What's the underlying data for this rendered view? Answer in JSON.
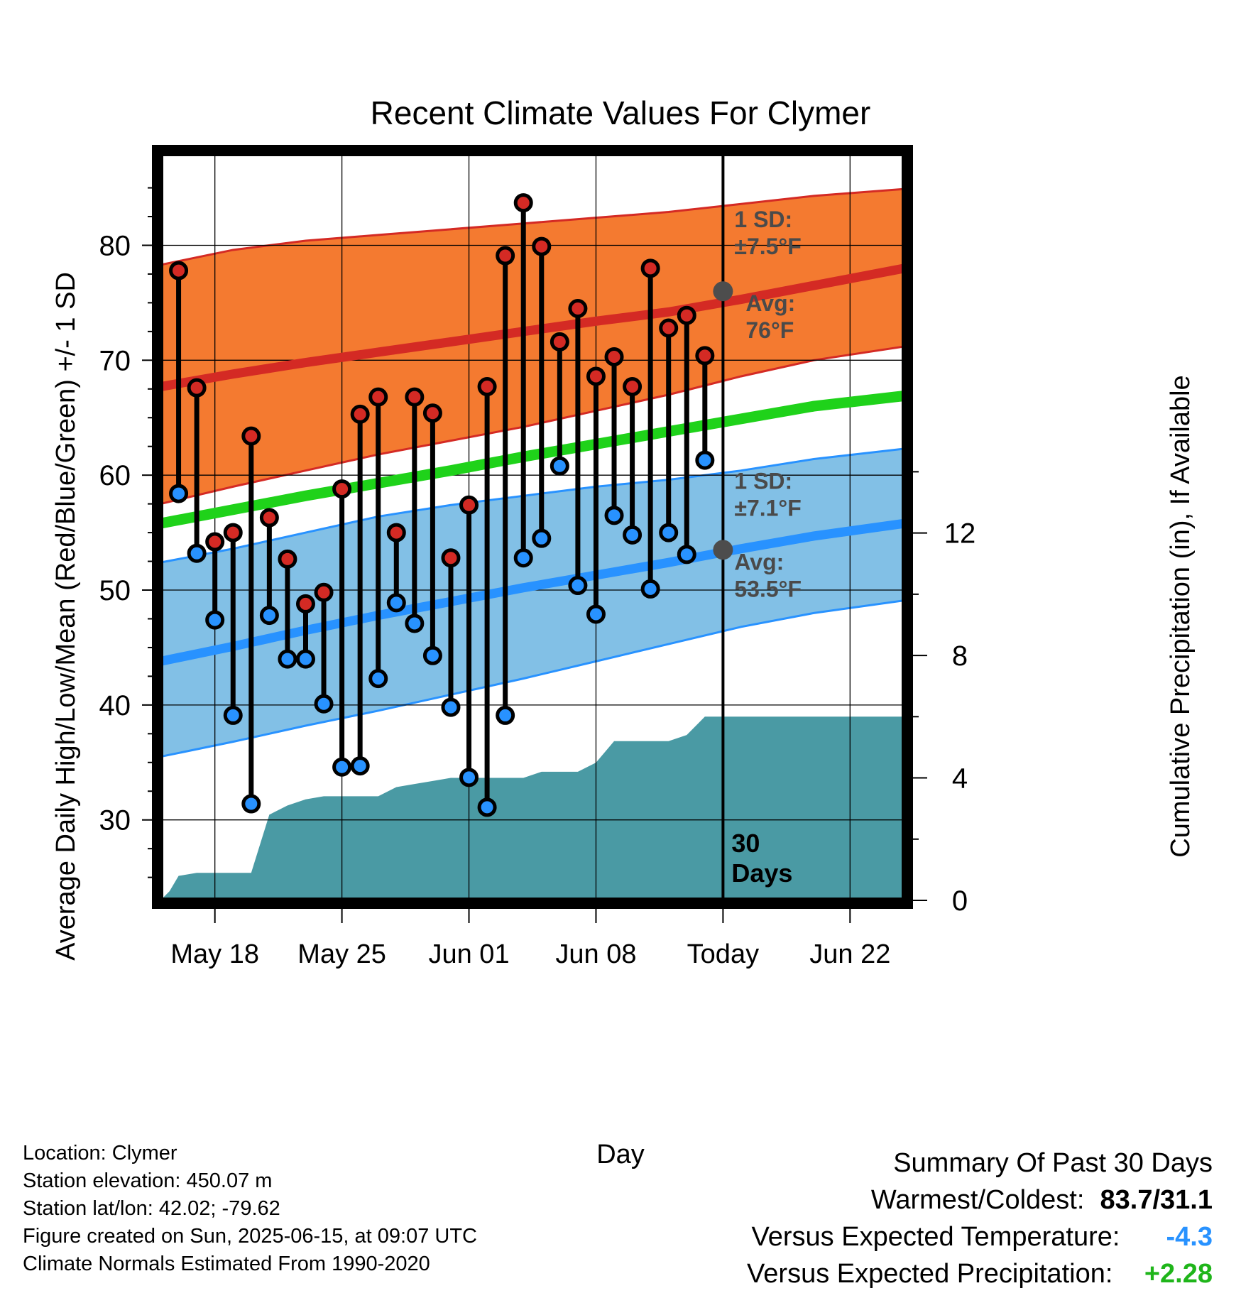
{
  "chart_data": {
    "type": "line",
    "title": "Recent Climate Values For Clymer",
    "xlabel": "Day",
    "ylabel": "Average Daily High/Low/Mean (Red/Blue/Green) +/- 1 SD",
    "y2label": "Cumulative Precipitation (in), If Available",
    "x_range": [
      "2025-05-15",
      "2025-06-25"
    ],
    "ylim": [
      23,
      88
    ],
    "y2lim": [
      0,
      24.4
    ],
    "y_ticks": [
      30,
      40,
      50,
      60,
      70,
      80
    ],
    "y2_ticks": [
      0,
      4,
      8,
      12
    ],
    "x_ticks": [
      {
        "date": "2025-05-18",
        "label": "May 18"
      },
      {
        "date": "2025-05-25",
        "label": "May 25"
      },
      {
        "date": "2025-06-01",
        "label": "Jun 01"
      },
      {
        "date": "2025-06-08",
        "label": "Jun 08"
      },
      {
        "date": "2025-06-15",
        "label": "Today"
      },
      {
        "date": "2025-06-22",
        "label": "Jun 22"
      }
    ],
    "grid": true,
    "today_date": "2025-06-15",
    "today_label": [
      "30",
      "Days"
    ],
    "normals": {
      "x": [
        "2025-05-15",
        "2025-05-19",
        "2025-05-23",
        "2025-05-27",
        "2025-05-31",
        "2025-06-04",
        "2025-06-08",
        "2025-06-12",
        "2025-06-16",
        "2025-06-20",
        "2025-06-25"
      ],
      "high_mean": [
        67.7,
        68.8,
        69.8,
        70.7,
        71.6,
        72.5,
        73.4,
        74.2,
        75.3,
        76.5,
        78.0
      ],
      "high_upper": [
        78.3,
        79.6,
        80.4,
        80.9,
        81.4,
        81.9,
        82.4,
        82.9,
        83.6,
        84.3,
        84.9
      ],
      "high_lower": [
        57.5,
        59.0,
        60.4,
        61.8,
        63.0,
        64.2,
        65.6,
        67.0,
        68.6,
        70.0,
        71.2
      ],
      "low_mean": [
        43.8,
        45.1,
        46.5,
        47.8,
        49.0,
        50.2,
        51.3,
        52.4,
        53.6,
        54.7,
        55.8
      ],
      "low_upper": [
        52.4,
        53.6,
        55.0,
        56.4,
        57.4,
        58.2,
        59.0,
        59.6,
        60.4,
        61.4,
        62.3
      ],
      "low_lower": [
        35.5,
        36.8,
        38.2,
        39.5,
        40.9,
        42.3,
        43.8,
        45.3,
        46.8,
        48.0,
        49.1
      ],
      "mean": [
        55.8,
        57.0,
        58.2,
        59.3,
        60.4,
        61.6,
        62.7,
        63.8,
        64.9,
        66.0,
        66.9
      ]
    },
    "daily": {
      "x": [
        "2025-05-16",
        "2025-05-17",
        "2025-05-18",
        "2025-05-19",
        "2025-05-20",
        "2025-05-21",
        "2025-05-22",
        "2025-05-23",
        "2025-05-24",
        "2025-05-25",
        "2025-05-26",
        "2025-05-27",
        "2025-05-28",
        "2025-05-29",
        "2025-05-30",
        "2025-05-31",
        "2025-06-01",
        "2025-06-02",
        "2025-06-03",
        "2025-06-04",
        "2025-06-05",
        "2025-06-06",
        "2025-06-07",
        "2025-06-08",
        "2025-06-09",
        "2025-06-10",
        "2025-06-11",
        "2025-06-12",
        "2025-06-13",
        "2025-06-14"
      ],
      "high": [
        77.8,
        67.6,
        54.2,
        55.0,
        63.4,
        56.3,
        52.7,
        48.8,
        49.8,
        58.8,
        65.3,
        66.8,
        55.0,
        66.8,
        65.4,
        52.8,
        57.4,
        67.7,
        79.1,
        83.7,
        79.9,
        71.6,
        74.5,
        68.6,
        70.3,
        67.7,
        78.0,
        72.8,
        73.9,
        70.4
      ],
      "low": [
        58.4,
        53.2,
        47.4,
        39.1,
        31.4,
        47.8,
        44.0,
        44.0,
        40.1,
        34.6,
        34.7,
        42.3,
        48.9,
        47.1,
        44.3,
        39.8,
        33.7,
        31.1,
        39.1,
        52.8,
        54.5,
        60.8,
        50.4,
        47.9,
        56.5,
        54.8,
        50.1,
        55.0,
        53.1,
        61.3
      ]
    },
    "precip": {
      "x": [
        "2025-05-15",
        "2025-05-15.5",
        "2025-05-16",
        "2025-05-17",
        "2025-05-18",
        "2025-05-19",
        "2025-05-20",
        "2025-05-21",
        "2025-05-22",
        "2025-05-23",
        "2025-05-24",
        "2025-05-25",
        "2025-05-26",
        "2025-05-27",
        "2025-05-28",
        "2025-05-29",
        "2025-05-30",
        "2025-05-31",
        "2025-06-01",
        "2025-06-02",
        "2025-06-03",
        "2025-06-04",
        "2025-06-05",
        "2025-06-06",
        "2025-06-07",
        "2025-06-08",
        "2025-06-09",
        "2025-06-10",
        "2025-06-11",
        "2025-06-12",
        "2025-06-13",
        "2025-06-14",
        "2025-06-25"
      ],
      "values": [
        0.0,
        0.3,
        0.8,
        0.9,
        0.9,
        0.9,
        0.9,
        2.8,
        3.1,
        3.3,
        3.4,
        3.4,
        3.4,
        3.4,
        3.7,
        3.8,
        3.9,
        4.0,
        4.0,
        4.0,
        4.0,
        4.0,
        4.2,
        4.2,
        4.2,
        4.5,
        5.2,
        5.2,
        5.2,
        5.2,
        5.4,
        6.0,
        6.0
      ]
    },
    "annotations": {
      "high_sd": [
        "1 SD:",
        "±7.5°F"
      ],
      "high_avg": [
        "Avg:",
        "76°F"
      ],
      "high_avg_value": 76.0,
      "low_sd": [
        "1 SD:",
        "±7.1°F"
      ],
      "low_avg": [
        "Avg:",
        "53.5°F"
      ],
      "low_avg_value": 53.5
    },
    "colors": {
      "high_band": "#f47a30",
      "high_line": "#d42a24",
      "low_band": "#82c0e6",
      "low_line": "#2892ff",
      "mean_line": "#1fd21a",
      "precip": "#4a9aa4",
      "high_dot": "#d42a24",
      "low_dot": "#2892ff",
      "annotation_text": "#4a4a4a"
    }
  },
  "info": {
    "location": "Location: Clymer",
    "elevation": "Station elevation: 450.07 m",
    "latlon": "Station lat/lon: 42.02; -79.62",
    "created": "Figure created on Sun, 2025-06-15, at 09:07 UTC",
    "normals": "Climate Normals Estimated From 1990-2020"
  },
  "summary": {
    "title": "Summary Of Past 30 Days",
    "warmest_coldest_label": "Warmest/Coldest:",
    "warmest_coldest_value": "83.7/31.1",
    "temp_label": "Versus Expected Temperature:",
    "temp_value": "-4.3",
    "temp_color": "#2892ff",
    "precip_label": "Versus Expected Precipitation:",
    "precip_value": "+2.28",
    "precip_color": "#1fb51a"
  }
}
